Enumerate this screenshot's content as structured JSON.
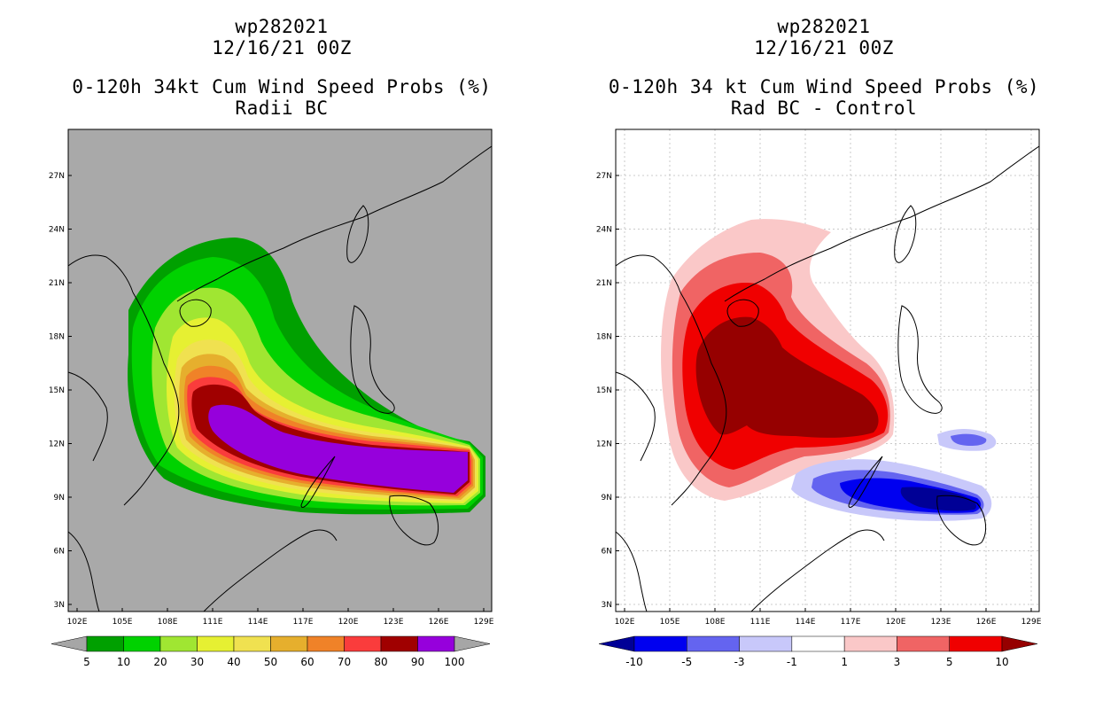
{
  "left_panel": {
    "storm_id": "wp282021",
    "datetime": "12/16/21 00Z",
    "title": "0-120h 34kt Cum Wind Speed Probs (%)",
    "subtitle": "Radii BC",
    "background_color": "#a9a9a9",
    "colorbar": {
      "labels": [
        "5",
        "10",
        "20",
        "30",
        "40",
        "50",
        "60",
        "70",
        "80",
        "90",
        "100"
      ],
      "colors": [
        "#a6a6a6",
        "#00a000",
        "#00d200",
        "#a0e632",
        "#e6f032",
        "#f0e150",
        "#e6af2d",
        "#f08228",
        "#fa3c3c",
        "#a00000",
        "#9600dc",
        "#a6a6a6"
      ]
    }
  },
  "right_panel": {
    "storm_id": "wp282021",
    "datetime": "12/16/21 00Z",
    "title": "0-120h 34 kt Cum Wind Speed Probs (%)",
    "subtitle": "Rad BC - Control",
    "background_color": "#ffffff",
    "colorbar": {
      "labels": [
        "-10",
        "-5",
        "-3",
        "-1",
        "1",
        "3",
        "5",
        "10"
      ],
      "colors": [
        "#000096",
        "#0000f0",
        "#6464f0",
        "#c8c8fa",
        "#ffffff",
        "#fac8c8",
        "#f06464",
        "#f00000",
        "#960000"
      ]
    }
  },
  "axes": {
    "lon_labels": [
      "102E",
      "105E",
      "108E",
      "111E",
      "114E",
      "117E",
      "120E",
      "123E",
      "126E",
      "129E"
    ],
    "lat_labels": [
      "3N",
      "6N",
      "9N",
      "12N",
      "15N",
      "18N",
      "21N",
      "24N",
      "27N"
    ]
  }
}
